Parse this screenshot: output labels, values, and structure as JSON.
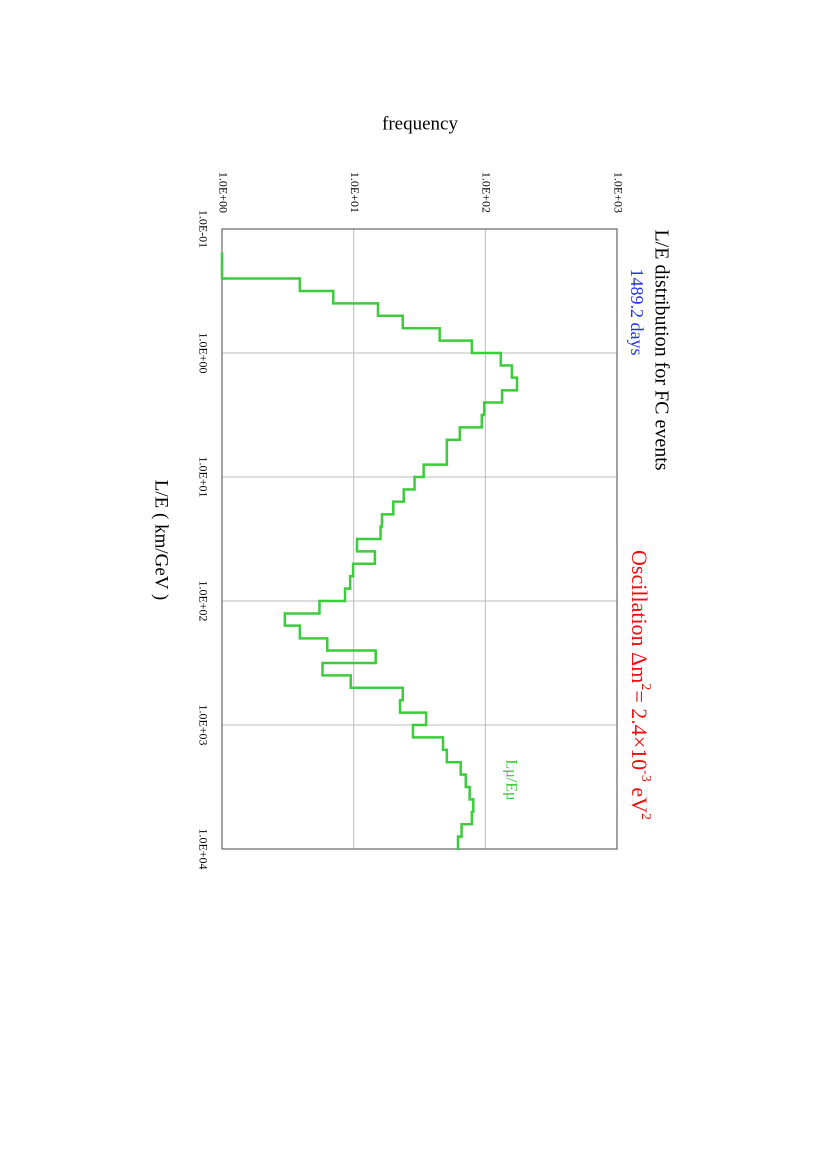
{
  "chart_data": {
    "type": "histogram",
    "title": "L/E distribution for FC events",
    "subtitle": "1489.2 days",
    "subtitle_color": "#2233ee",
    "annotation": [
      "Oscillation Δm",
      "2",
      "= 2.4×10",
      "-3",
      " eV",
      "2"
    ],
    "annotation_color": "#e81010",
    "xlabel": "L/E  ( km/GeV )",
    "ylabel": "frequency",
    "xscale": "log",
    "yscale": "log",
    "grid": true,
    "xlim": [
      0.1,
      10000
    ],
    "ylim": [
      1,
      1000
    ],
    "xticks": [
      {
        "value": 0.1,
        "label": "1.0E-01"
      },
      {
        "value": 1,
        "label": "1.0E+00"
      },
      {
        "value": 10,
        "label": "1.0E+01"
      },
      {
        "value": 100,
        "label": "1.0E+02"
      },
      {
        "value": 1000,
        "label": "1.0E+03"
      },
      {
        "value": 10000,
        "label": "1.0E+04"
      }
    ],
    "yticks": [
      {
        "value": 1,
        "label": "1.0E+00"
      },
      {
        "value": 10,
        "label": "1.0E+01"
      },
      {
        "value": 100,
        "label": "1.0E+02"
      },
      {
        "value": 1000,
        "label": "1.0E+03"
      }
    ],
    "bins": [
      0.158,
      0.2,
      0.251,
      0.316,
      0.398,
      0.501,
      0.631,
      0.794,
      1,
      1.26,
      1.58,
      2,
      2.51,
      3.16,
      3.98,
      5.01,
      6.31,
      7.94,
      10,
      12.6,
      15.8,
      20,
      25.1,
      31.6,
      39.8,
      50.1,
      63.1,
      79.4,
      100,
      126,
      158,
      200,
      251,
      316,
      398,
      501,
      631,
      794,
      1000,
      1259,
      1585,
      1995,
      2512,
      3162,
      3981,
      5012,
      6310,
      7943,
      10000
    ],
    "series": [
      {
        "name": "Lμ/Eμ",
        "color": "#3ccc3c",
        "values": [
          1,
          1,
          3.9,
          7.0,
          15.3,
          23.6,
          45,
          79,
          131,
          159,
          174,
          134,
          98,
          94,
          64,
          51,
          51,
          34,
          29,
          24,
          20,
          16.4,
          16,
          10.6,
          14.5,
          9.9,
          9.4,
          8.6,
          5.5,
          3.0,
          3.9,
          6.3,
          14.7,
          5.8,
          9.5,
          23.6,
          22.5,
          35.5,
          28.2,
          47.7,
          51,
          65,
          71,
          76,
          81,
          79,
          66,
          62
        ]
      }
    ]
  }
}
